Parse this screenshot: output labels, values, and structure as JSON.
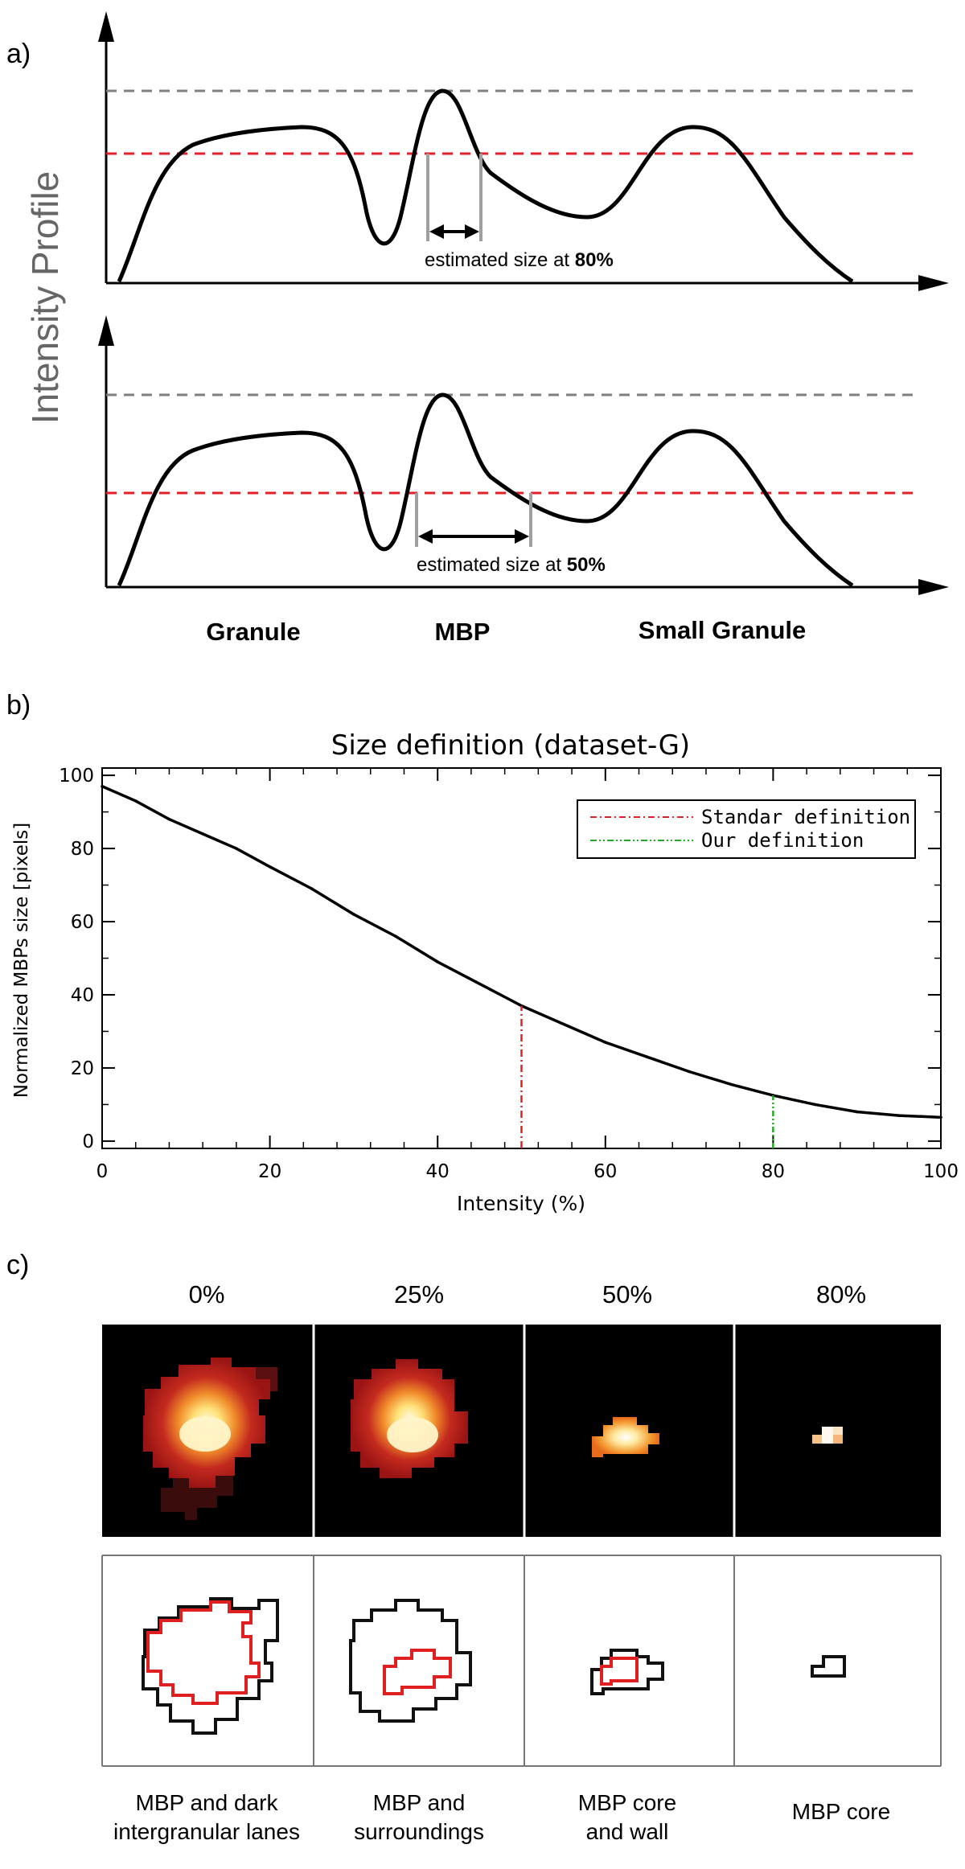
{
  "panel_labels": {
    "a": "a)",
    "b": "b)",
    "c": "c)"
  },
  "panel_a": {
    "ylabel": "Intensity Profile",
    "annotation_top_prefix": "estimated size at ",
    "annotation_top_value": "80%",
    "annotation_bottom_prefix": "estimated size at ",
    "annotation_bottom_value": "50%",
    "feature_labels": [
      "Granule",
      "MBP",
      "Small Granule"
    ],
    "colors": {
      "profile": "#000000",
      "max_line": "#7f7f7f",
      "threshold_line": "#e0202a",
      "width_marker": "#a0a0a0"
    }
  },
  "chart_data": {
    "type": "line",
    "title": "Size definition (dataset-G)",
    "xlabel": "Intensity (%)",
    "ylabel": "Normalized MBPs size [pixels]",
    "xlim": [
      0,
      100
    ],
    "ylim": [
      -2,
      102
    ],
    "xticks": [
      0,
      20,
      40,
      60,
      80,
      100
    ],
    "yticks": [
      0,
      20,
      40,
      60,
      80,
      100
    ],
    "grid": false,
    "legend_position": "top-right",
    "series": [
      {
        "x": [
          0,
          4,
          8,
          12,
          16,
          20,
          25,
          30,
          35,
          40,
          45,
          50,
          55,
          60,
          65,
          70,
          75,
          80,
          85,
          90,
          95,
          100
        ],
        "y": [
          97,
          93,
          88,
          84,
          80,
          75,
          69,
          62,
          56,
          49,
          43,
          37,
          32,
          27,
          23,
          19,
          15.5,
          12.5,
          10,
          8,
          7,
          6.5
        ],
        "color": "#000000"
      }
    ],
    "markers": [
      {
        "name": "Standar definition",
        "x": 50,
        "y": 37,
        "color": "#dd2222",
        "style": "dash-dot"
      },
      {
        "name": "Our definition",
        "x": 80,
        "y": 12.5,
        "color": "#22aa22",
        "style": "dash-dot-dot"
      }
    ]
  },
  "panel_c": {
    "columns": [
      {
        "threshold": "0%",
        "caption": [
          "MBP and dark",
          "intergranular lanes"
        ]
      },
      {
        "threshold": "25%",
        "caption": [
          "MBP and",
          "surroundings"
        ]
      },
      {
        "threshold": "50%",
        "caption": [
          "MBP core",
          "and wall"
        ]
      },
      {
        "threshold": "80%",
        "caption": [
          "MBP core"
        ]
      }
    ],
    "colors": {
      "heat_background": "#000000",
      "outline_outer": "#111111",
      "outline_inner": "#e02020"
    }
  }
}
